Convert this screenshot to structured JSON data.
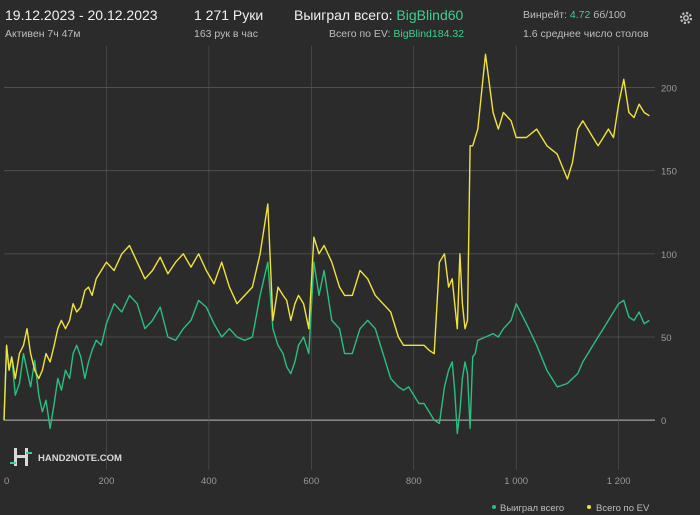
{
  "header": {
    "date_range": "19.12.2023 - 20.12.2023",
    "active_time": "Активен 7ч 47м",
    "hands": "1 271 Руки",
    "hands_per_hour": "163 рук в час",
    "won_total_label": "Выиграл всего:",
    "won_total_value": "BigBlind60",
    "ev_total_label": "Всего по EV:",
    "ev_total_value": "BigBlind184.32",
    "winrate_label": "Винрейт:",
    "winrate_value": "4.72",
    "winrate_unit": "бб/100",
    "avg_tables": "1.6 среднее число столов"
  },
  "logo": "HAND2NOTE.COM",
  "colors": {
    "won": "#2bbf7f",
    "ev": "#f2e23c",
    "grid": "#555555",
    "zero": "#bcbcbc"
  },
  "chart_data": {
    "type": "line",
    "xlim": [
      0,
      1271
    ],
    "ylim": [
      -30,
      225
    ],
    "x_ticks": [
      0,
      200,
      400,
      600,
      800,
      1000,
      1200
    ],
    "x_tick_labels": [
      "0",
      "200",
      "400",
      "600",
      "800",
      "1 000",
      "1 200"
    ],
    "y_ticks": [
      0,
      50,
      100,
      150,
      200
    ],
    "y_tick_labels": [
      "0",
      "50",
      "100",
      "150",
      "200"
    ],
    "grid": true,
    "legend_position": "bottom-right",
    "series": [
      {
        "name": "Выиграл всего",
        "color": "#2bbf7f",
        "x": [
          0,
          5,
          10,
          15,
          22,
          30,
          38,
          45,
          52,
          60,
          68,
          75,
          82,
          90,
          98,
          105,
          112,
          120,
          128,
          135,
          142,
          150,
          158,
          165,
          172,
          180,
          190,
          200,
          215,
          230,
          245,
          260,
          275,
          290,
          305,
          320,
          335,
          350,
          365,
          380,
          395,
          410,
          425,
          440,
          455,
          470,
          485,
          500,
          515,
          525,
          535,
          545,
          552,
          560,
          568,
          575,
          585,
          595,
          605,
          615,
          625,
          640,
          655,
          665,
          680,
          695,
          710,
          725,
          740,
          755,
          770,
          780,
          790,
          800,
          810,
          820,
          830,
          840,
          850,
          860,
          868,
          875,
          880,
          885,
          890,
          895,
          900,
          905,
          910,
          915,
          920,
          925,
          940,
          955,
          965,
          975,
          990,
          1000,
          1020,
          1040,
          1060,
          1080,
          1100,
          1110,
          1120,
          1130,
          1140,
          1150,
          1160,
          1170,
          1180,
          1190,
          1200,
          1210,
          1220,
          1230,
          1240,
          1250,
          1260
        ],
        "y": [
          0,
          45,
          30,
          38,
          15,
          22,
          40,
          30,
          20,
          36,
          15,
          5,
          12,
          -5,
          10,
          25,
          18,
          30,
          25,
          40,
          45,
          38,
          25,
          35,
          42,
          48,
          45,
          58,
          70,
          65,
          75,
          70,
          55,
          60,
          68,
          50,
          48,
          55,
          60,
          72,
          68,
          58,
          50,
          55,
          50,
          48,
          50,
          75,
          95,
          55,
          45,
          40,
          32,
          28,
          35,
          45,
          50,
          40,
          95,
          75,
          90,
          60,
          55,
          40,
          40,
          55,
          60,
          55,
          40,
          25,
          20,
          18,
          20,
          15,
          10,
          10,
          5,
          0,
          -2,
          20,
          30,
          35,
          18,
          -8,
          5,
          25,
          35,
          28,
          -5,
          38,
          40,
          48,
          50,
          52,
          50,
          55,
          60,
          70,
          58,
          45,
          30,
          20,
          22,
          25,
          28,
          35,
          40,
          45,
          50,
          55,
          60,
          65,
          70,
          72,
          62,
          60,
          65,
          58,
          60
        ]
      },
      {
        "name": "Всего по EV",
        "color": "#f2e23c",
        "x": [
          0,
          5,
          10,
          15,
          22,
          30,
          38,
          45,
          52,
          60,
          68,
          75,
          82,
          90,
          98,
          105,
          112,
          120,
          128,
          135,
          142,
          150,
          158,
          165,
          172,
          180,
          190,
          200,
          215,
          230,
          245,
          260,
          275,
          290,
          305,
          320,
          335,
          350,
          365,
          380,
          395,
          410,
          425,
          440,
          455,
          470,
          485,
          500,
          515,
          525,
          535,
          545,
          552,
          560,
          568,
          575,
          585,
          595,
          605,
          615,
          625,
          640,
          655,
          665,
          680,
          695,
          710,
          725,
          740,
          755,
          770,
          780,
          790,
          800,
          810,
          820,
          830,
          840,
          850,
          860,
          868,
          875,
          880,
          885,
          890,
          895,
          900,
          905,
          910,
          915,
          920,
          925,
          940,
          955,
          965,
          975,
          990,
          1000,
          1020,
          1040,
          1060,
          1080,
          1100,
          1110,
          1120,
          1130,
          1140,
          1150,
          1160,
          1170,
          1180,
          1190,
          1200,
          1210,
          1220,
          1230,
          1240,
          1250,
          1260
        ],
        "y": [
          0,
          45,
          30,
          38,
          25,
          40,
          45,
          55,
          40,
          30,
          25,
          30,
          40,
          35,
          45,
          55,
          60,
          55,
          60,
          70,
          65,
          68,
          78,
          80,
          75,
          85,
          90,
          95,
          90,
          100,
          105,
          95,
          85,
          90,
          98,
          88,
          95,
          100,
          92,
          100,
          90,
          82,
          95,
          80,
          70,
          75,
          80,
          100,
          130,
          60,
          80,
          75,
          72,
          60,
          70,
          75,
          70,
          55,
          110,
          100,
          105,
          95,
          80,
          75,
          75,
          90,
          85,
          75,
          70,
          65,
          50,
          45,
          45,
          45,
          45,
          45,
          42,
          40,
          95,
          100,
          80,
          85,
          70,
          55,
          100,
          70,
          55,
          60,
          165,
          165,
          170,
          175,
          220,
          185,
          175,
          185,
          180,
          170,
          170,
          175,
          165,
          160,
          145,
          155,
          175,
          180,
          175,
          170,
          165,
          170,
          175,
          170,
          190,
          205,
          185,
          182,
          190,
          185,
          183
        ]
      }
    ]
  },
  "legend": {
    "won_label": "Выиграл всего",
    "ev_label": "Всего по EV"
  }
}
